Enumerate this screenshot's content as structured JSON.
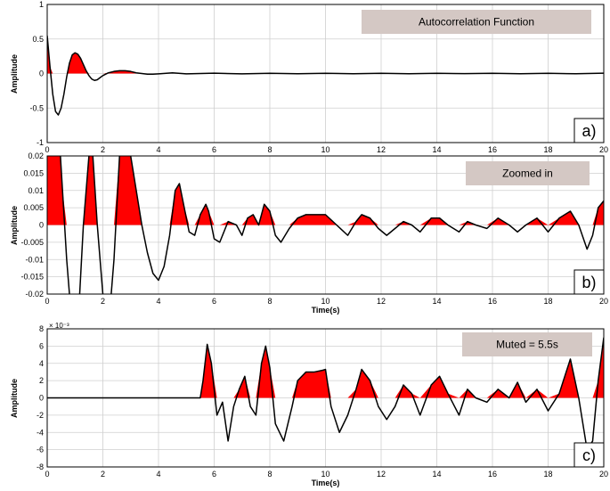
{
  "chart_data": [
    {
      "type": "line",
      "panel_label": "a)",
      "annotation": "Autocorrelation Function",
      "ylabel": "Amplitude",
      "xlabel": "",
      "xlim": [
        0,
        20
      ],
      "ylim": [
        -1,
        1
      ],
      "xticks": [
        "0",
        "2",
        "4",
        "6",
        "8",
        "10",
        "12",
        "14",
        "16",
        "18",
        "20"
      ],
      "yticks": [
        "1",
        "0.5",
        "0",
        "-0.5",
        "-1"
      ],
      "grid": true,
      "positive_fill_color": "#ff0000",
      "line_color": "#000000",
      "series": [
        {
          "x": [
            0,
            0.1,
            0.2,
            0.3,
            0.4,
            0.5,
            0.6,
            0.7,
            0.8,
            0.9,
            1.0,
            1.1,
            1.2,
            1.3,
            1.4,
            1.5,
            1.6,
            1.7,
            1.8,
            1.9,
            2.0,
            2.2,
            2.4,
            2.6,
            2.8,
            3.0,
            3.2,
            3.4,
            3.6,
            3.8,
            4.0,
            4.5,
            5,
            6,
            7,
            8,
            9,
            10,
            11,
            12,
            13,
            14,
            15,
            16,
            17,
            18,
            19,
            20
          ],
          "y": [
            0.55,
            0.1,
            -0.3,
            -0.55,
            -0.6,
            -0.5,
            -0.3,
            -0.05,
            0.15,
            0.27,
            0.3,
            0.28,
            0.22,
            0.13,
            0.04,
            -0.03,
            -0.08,
            -0.1,
            -0.09,
            -0.06,
            -0.03,
            0.01,
            0.03,
            0.04,
            0.04,
            0.03,
            0.01,
            0.0,
            -0.01,
            -0.01,
            -0.005,
            0.01,
            -0.005,
            0.005,
            -0.005,
            0.004,
            -0.004,
            0.004,
            -0.003,
            0.003,
            -0.003,
            0.003,
            -0.002,
            0.003,
            -0.003,
            0.004,
            -0.004,
            0.005
          ]
        }
      ]
    },
    {
      "type": "line",
      "panel_label": "b)",
      "annotation": "Zoomed in",
      "ylabel": "Amplitude",
      "xlabel": "Time(s)",
      "xlim": [
        0,
        20
      ],
      "ylim": [
        -0.02,
        0.02
      ],
      "xticks": [
        "0",
        "2",
        "4",
        "6",
        "8",
        "10",
        "12",
        "14",
        "16",
        "18",
        "20"
      ],
      "yticks": [
        "0.02",
        "0.015",
        "0.01",
        "0.005",
        "0",
        "-0.005",
        "-0.01",
        "-0.015",
        "-0.02"
      ],
      "grid": true,
      "positive_fill_color": "#ff0000",
      "line_color": "#000000",
      "series": [
        {
          "x": [
            0,
            0.2,
            0.4,
            0.55,
            0.7,
            0.9,
            1.1,
            1.3,
            1.5,
            1.6,
            1.8,
            2.0,
            2.2,
            2.4,
            2.6,
            2.7,
            2.8,
            3.0,
            3.2,
            3.4,
            3.6,
            3.8,
            4.0,
            4.2,
            4.4,
            4.6,
            4.75,
            4.9,
            5.1,
            5.3,
            5.5,
            5.7,
            5.8,
            6.0,
            6.2,
            6.5,
            6.8,
            7.0,
            7.2,
            7.4,
            7.6,
            7.8,
            8.0,
            8.2,
            8.4,
            8.7,
            9.0,
            9.3,
            9.6,
            10.0,
            10.4,
            10.8,
            11.1,
            11.3,
            11.6,
            11.9,
            12.2,
            12.5,
            12.8,
            13.1,
            13.4,
            13.8,
            14.1,
            14.4,
            14.8,
            15.1,
            15.4,
            15.8,
            16.2,
            16.6,
            16.9,
            17.2,
            17.6,
            18.0,
            18.4,
            18.8,
            19.1,
            19.4,
            19.6,
            19.8,
            20.0
          ],
          "y": [
            0.02,
            0.03,
            0.03,
            0.01,
            -0.01,
            -0.03,
            -0.03,
            0.0,
            0.02,
            0.025,
            0.0,
            -0.02,
            -0.03,
            -0.01,
            0.02,
            0.03,
            0.03,
            0.02,
            0.01,
            0.0,
            -0.008,
            -0.014,
            -0.016,
            -0.012,
            -0.003,
            0.01,
            0.012,
            0.006,
            -0.002,
            -0.003,
            0.003,
            0.006,
            0.004,
            -0.004,
            -0.005,
            0.001,
            0.0,
            -0.003,
            0.002,
            0.003,
            0.0,
            0.006,
            0.004,
            -0.003,
            -0.005,
            -0.001,
            0.002,
            0.003,
            0.003,
            0.003,
            0.0,
            -0.003,
            0.001,
            0.003,
            0.002,
            -0.001,
            -0.003,
            -0.001,
            0.001,
            0.0,
            -0.002,
            0.002,
            0.002,
            0.0,
            -0.002,
            0.001,
            0.0,
            -0.001,
            0.002,
            0.0,
            -0.002,
            0.0,
            0.002,
            -0.002,
            0.002,
            0.004,
            0.0,
            -0.007,
            -0.003,
            0.005,
            0.007
          ]
        }
      ]
    },
    {
      "type": "line",
      "panel_label": "c)",
      "annotation": "Muted = 5.5s",
      "ylabel": "Amplitude",
      "xlabel": "Time(s)",
      "exponent_label": "× 10⁻³",
      "xlim": [
        0,
        20
      ],
      "ylim": [
        -8,
        8
      ],
      "xticks": [
        "0",
        "2",
        "4",
        "6",
        "8",
        "10",
        "12",
        "14",
        "16",
        "18",
        "20"
      ],
      "yticks": [
        "8",
        "6",
        "4",
        "2",
        "0",
        "-2",
        "-4",
        "-6",
        "-8"
      ],
      "grid": true,
      "positive_fill_color": "#ff0000",
      "line_color": "#000000",
      "series": [
        {
          "x": [
            0,
            1,
            2,
            3,
            4,
            5,
            5.5,
            5.6,
            5.75,
            5.9,
            6.1,
            6.3,
            6.5,
            6.7,
            6.9,
            7.1,
            7.3,
            7.5,
            7.7,
            7.85,
            8.0,
            8.2,
            8.5,
            8.8,
            9.0,
            9.3,
            9.6,
            9.9,
            10.0,
            10.2,
            10.5,
            10.8,
            11.1,
            11.3,
            11.6,
            11.9,
            12.2,
            12.5,
            12.8,
            13.1,
            13.4,
            13.8,
            14.1,
            14.4,
            14.8,
            15.1,
            15.4,
            15.8,
            16.2,
            16.6,
            16.9,
            17.2,
            17.6,
            18.0,
            18.4,
            18.8,
            19.1,
            19.4,
            19.6,
            19.8,
            20.0
          ],
          "y": [
            0,
            0,
            0,
            0,
            0,
            0,
            0,
            2.0,
            6.2,
            4.0,
            -2.0,
            -0.5,
            -5.0,
            -1.0,
            1.0,
            2.5,
            -1.0,
            -2.0,
            4.0,
            6.0,
            3.5,
            -3.0,
            -5.0,
            -1.0,
            2.0,
            3.0,
            3.0,
            3.2,
            3.3,
            -1.0,
            -4.0,
            -2.0,
            1.0,
            3.3,
            2.0,
            -1.0,
            -2.5,
            -1.0,
            1.5,
            0.5,
            -2.0,
            1.5,
            2.5,
            0.5,
            -2.0,
            1.0,
            0.0,
            -0.5,
            1.0,
            0.0,
            1.8,
            -0.5,
            1.0,
            -1.5,
            0.5,
            4.5,
            0.0,
            -6.0,
            -5.0,
            2.0,
            7.0
          ]
        }
      ]
    }
  ]
}
